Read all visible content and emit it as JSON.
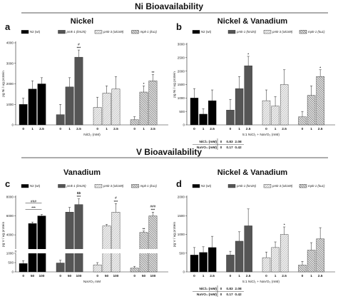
{
  "sections": [
    {
      "title": "Ni Bioavailability"
    },
    {
      "title": "V Bioavailability"
    }
  ],
  "legend_labels": [
    "N2 (wt)",
    "pmk-1 (km25)",
    "pmk-3 (ok169)",
    "mpk-1 (ku1)"
  ],
  "colors": {
    "wt": "#000000",
    "km25": "#555555",
    "ok169": "#e0e0e0",
    "ku1": "#cfcfcf"
  },
  "chart_data": [
    {
      "id": "a",
      "letter": "a",
      "title": "Nickel",
      "type": "bar",
      "ylabel": "pg Ni / ug protein",
      "xlabel": "NiCl₂ (mM)",
      "ylim": [
        0,
        4000
      ],
      "yticks": [
        0,
        1000,
        2000,
        3000,
        4000
      ],
      "tick_labels": [
        "0",
        "1000",
        "2000",
        "3000",
        "4000"
      ],
      "categories": [
        "0",
        "1",
        "2.5"
      ],
      "series": [
        {
          "name": "N2 (wt)",
          "values": [
            1000,
            1750,
            2000
          ],
          "errors": [
            300,
            400,
            300
          ],
          "marks": [
            "",
            "",
            ""
          ]
        },
        {
          "name": "pmk-1 (km25)",
          "values": [
            500,
            1850,
            3300
          ],
          "errors": [
            500,
            450,
            350
          ],
          "marks": [
            "",
            "",
            "#\n***"
          ]
        },
        {
          "name": "pmk-3 (ok169)",
          "values": [
            850,
            1550,
            1750
          ],
          "errors": [
            500,
            350,
            600
          ],
          "marks": [
            "",
            "",
            ""
          ]
        },
        {
          "name": "mpk-1 (ku1)",
          "values": [
            250,
            1600,
            2150
          ],
          "errors": [
            150,
            300,
            300
          ],
          "marks": [
            "",
            "*",
            "**"
          ]
        }
      ]
    },
    {
      "id": "b",
      "letter": "b",
      "title": "Nickel & Vanadium",
      "type": "bar",
      "ylabel": "pg Ni / ug protein",
      "xlabel": "5:1 NiCl₂ + NaVO₃ (mM)",
      "ylim": [
        0,
        3000
      ],
      "yticks": [
        0,
        500,
        1000,
        1500,
        2000,
        2500,
        3000
      ],
      "tick_labels": [
        "0",
        "500",
        "1000",
        "1500",
        "2000",
        "2500",
        "3000"
      ],
      "categories": [
        "0",
        "1",
        "2.5"
      ],
      "series": [
        {
          "name": "N2 (wt)",
          "values": [
            1000,
            400,
            900
          ],
          "errors": [
            350,
            200,
            400
          ],
          "marks": [
            "",
            "",
            ""
          ]
        },
        {
          "name": "pmk-1 (km25)",
          "values": [
            550,
            1350,
            2200
          ],
          "errors": [
            400,
            450,
            350
          ],
          "marks": [
            "",
            "",
            "*"
          ]
        },
        {
          "name": "pmk-3 (ok169)",
          "values": [
            900,
            700,
            1500
          ],
          "errors": [
            400,
            350,
            550
          ],
          "marks": [
            "",
            "",
            ""
          ]
        },
        {
          "name": "mpk-1 (ku1)",
          "values": [
            300,
            1100,
            1800
          ],
          "errors": [
            200,
            350,
            250
          ],
          "marks": [
            "",
            "",
            "*"
          ]
        }
      ],
      "concentration_table": [
        {
          "label": "NiCl₂ (mM)",
          "values": [
            "0",
            "0.83",
            "2.08"
          ]
        },
        {
          "label": "NaVO₃ (mM)",
          "values": [
            "0",
            "0.17",
            "0.42"
          ]
        }
      ]
    },
    {
      "id": "c",
      "letter": "c",
      "title": "Vanadium",
      "type": "bar",
      "ylabel": "pg V / ug protein",
      "xlabel": "NaVO₃ mM",
      "broken_axis": {
        "lower": [
          0,
          1000
        ],
        "upper": [
          2500,
          8000
        ]
      },
      "tick_labels_lower": [
        "0",
        "500",
        "1000"
      ],
      "tick_labels_upper": [
        "4000",
        "6000",
        "8000"
      ],
      "categories": [
        "0",
        "50",
        "100"
      ],
      "series": [
        {
          "name": "N2 (wt)",
          "values": [
            450,
            5200,
            6000
          ],
          "errors": [
            150,
            150,
            150
          ],
          "marks": [
            "",
            "",
            ""
          ]
        },
        {
          "name": "pmk-1 (km25)",
          "values": [
            480,
            6400,
            7200
          ],
          "errors": [
            150,
            500,
            600
          ],
          "marks": [
            "",
            "",
            "$$\n***"
          ]
        },
        {
          "name": "pmk-3 (ok169)",
          "values": [
            380,
            4950,
            6400
          ],
          "errors": [
            120,
            150,
            900
          ],
          "marks": [
            "",
            "",
            "#\n***"
          ]
        },
        {
          "name": "mpk-1 (ku1)",
          "values": [
            200,
            4250,
            6000
          ],
          "errors": [
            100,
            150,
            400
          ],
          "marks": [
            "",
            "**",
            "###\n***"
          ]
        }
      ],
      "brackets": [
        {
          "series": 0,
          "from": 1,
          "to": 2,
          "label": "***"
        },
        {
          "series": 0,
          "from": 1,
          "to": 2,
          "label": "###"
        }
      ]
    },
    {
      "id": "d",
      "letter": "d",
      "title": "Nickel & Vanadium",
      "type": "bar",
      "ylabel": "pg V / ug protein",
      "xlabel": "5:1 NiCl₂ + NaVO₃ (mM)",
      "ylim": [
        0,
        2000
      ],
      "yticks": [
        0,
        500,
        1000,
        1500,
        2000
      ],
      "tick_labels": [
        "0",
        "500",
        "1000",
        "1500",
        "2000"
      ],
      "categories": [
        "0",
        "1",
        "2.5"
      ],
      "series": [
        {
          "name": "N2 (wt)",
          "values": [
            450,
            520,
            650
          ],
          "errors": [
            200,
            150,
            300
          ],
          "marks": [
            "",
            "",
            ""
          ]
        },
        {
          "name": "pmk-1 (km25)",
          "values": [
            450,
            820,
            1230
          ],
          "errors": [
            100,
            250,
            450
          ],
          "marks": [
            "",
            "",
            ""
          ]
        },
        {
          "name": "pmk-3 (ok169)",
          "values": [
            380,
            650,
            1000
          ],
          "errors": [
            150,
            150,
            200
          ],
          "marks": [
            "",
            "",
            "*"
          ]
        },
        {
          "name": "mpk-1 (ku1)",
          "values": [
            180,
            580,
            880
          ],
          "errors": [
            100,
            200,
            300
          ],
          "marks": [
            "",
            "",
            ""
          ]
        }
      ],
      "concentration_table": [
        {
          "label": "NiCl₂ (mM)",
          "values": [
            "0",
            "0.83",
            "2.08"
          ]
        },
        {
          "label": "NaVO₃ (mM)",
          "values": [
            "0",
            "0.17",
            "0.42"
          ]
        }
      ]
    }
  ]
}
